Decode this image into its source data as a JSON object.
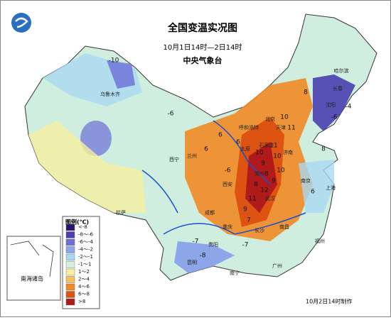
{
  "header": {
    "title": "全国变温实况图",
    "subtitle": "10月1日14时—2日14时",
    "agency": "中央气象台"
  },
  "legend": {
    "title": "图例(℃)",
    "items": [
      {
        "label": "<-8",
        "color": "#2a1470"
      },
      {
        "label": "-8～-6",
        "color": "#4a3fb0"
      },
      {
        "label": "-6～-4",
        "color": "#6c6fd6"
      },
      {
        "label": "-4～-2",
        "color": "#8da6ea"
      },
      {
        "label": "-2～-1",
        "color": "#a9d8f2"
      },
      {
        "label": "-1～1",
        "color": "#d6f0e0"
      },
      {
        "label": "1～2",
        "color": "#f5efa0"
      },
      {
        "label": "2～4",
        "color": "#f4c060"
      },
      {
        "label": "4～6",
        "color": "#ef8a26"
      },
      {
        "label": "6～8",
        "color": "#dc5312"
      },
      {
        "label": ">8",
        "color": "#b01a1a"
      }
    ]
  },
  "inset": {
    "label": "南海诸岛"
  },
  "footer": {
    "note": "10月2日14时制作"
  },
  "cities": [
    "乌鲁木齐",
    "拉萨",
    "西宁",
    "兰州",
    "呼和浩特",
    "北京",
    "天津",
    "石家庄",
    "太原",
    "济南",
    "郑州",
    "西安",
    "成都",
    "重庆",
    "贵阳",
    "昆明",
    "长沙",
    "武汉",
    "南京",
    "上海",
    "南昌",
    "福州",
    "广州",
    "南宁",
    "沈阳",
    "长春",
    "哈尔滨"
  ],
  "annotations": [
    "-10",
    "-6",
    "-6",
    "10",
    "11",
    "11",
    "10",
    "9",
    "8",
    "8",
    "12",
    "11",
    "9",
    "9",
    "10",
    "10",
    "8",
    "7",
    "6",
    "6",
    "6",
    "-6",
    "-4",
    "-8",
    "-7",
    "-7",
    "6",
    "8"
  ]
}
